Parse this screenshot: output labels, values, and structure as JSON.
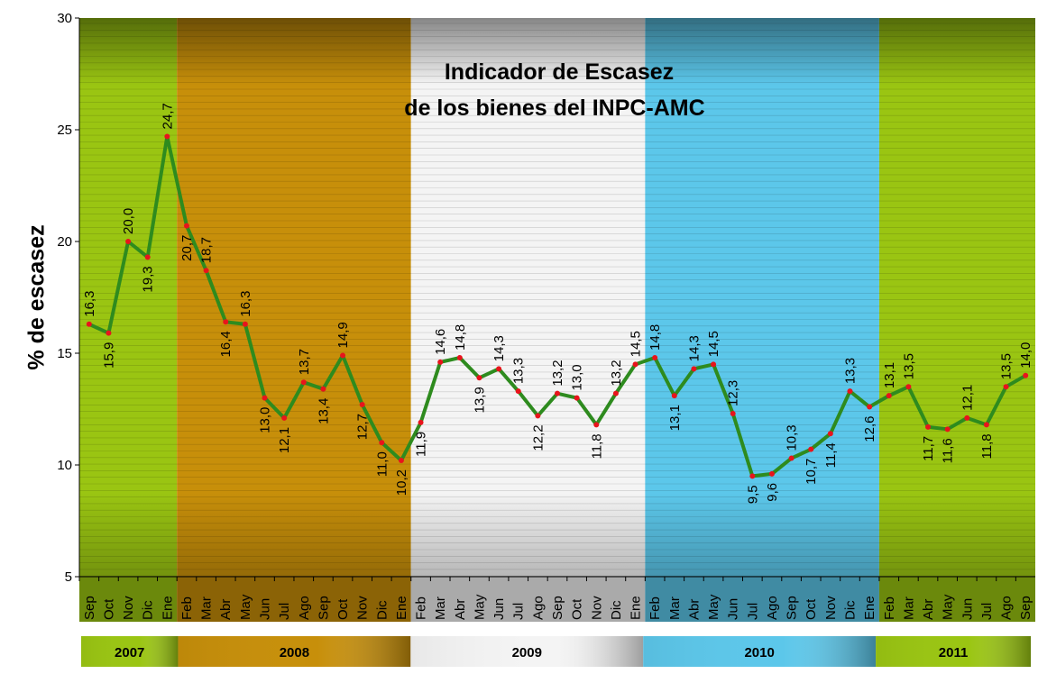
{
  "chart_data": {
    "type": "line",
    "title": "Indicador de Escasez",
    "subtitle": "de los bienes del INPC-AMC",
    "y_label": "% de escasez",
    "categories": [
      "Sep",
      "Oct",
      "Nov",
      "Dic",
      "Ene",
      "Feb",
      "Mar",
      "Abr",
      "May",
      "Jun",
      "Jul",
      "Ago",
      "Sep",
      "Oct",
      "Nov",
      "Dic",
      "Ene",
      "Feb",
      "Mar",
      "Abr",
      "May",
      "Jun",
      "Jul",
      "Ago",
      "Sep",
      "Oct",
      "Nov",
      "Dic",
      "Ene",
      "Feb",
      "Mar",
      "Abr",
      "May",
      "Jun",
      "Jul",
      "Ago",
      "Sep",
      "Oct",
      "Nov",
      "Dic",
      "Ene",
      "Feb",
      "Mar",
      "Abr",
      "May",
      "Jun",
      "Jul",
      "Ago",
      "Sep"
    ],
    "series": [
      {
        "name": "Indicador de Escasez",
        "color": "#2e8b1e",
        "marker_color": "#e8141c",
        "values": [
          16.3,
          15.9,
          20.0,
          19.3,
          24.7,
          20.7,
          18.7,
          16.4,
          16.3,
          13.0,
          12.1,
          13.7,
          13.4,
          14.9,
          12.7,
          11.0,
          10.2,
          11.9,
          14.6,
          14.8,
          13.9,
          14.3,
          13.3,
          12.2,
          13.2,
          13.0,
          11.8,
          13.2,
          14.5,
          14.8,
          13.1,
          14.3,
          14.5,
          12.3,
          9.5,
          9.6,
          10.3,
          10.7,
          11.4,
          13.3,
          12.6,
          13.1,
          13.5,
          11.7,
          11.6,
          12.1,
          11.8,
          13.5,
          14.0
        ],
        "value_labels": [
          "16,3",
          "15,9",
          "20,0",
          "19,3",
          "24,7",
          "20,7",
          "18,7",
          "16,4",
          "16,3",
          "13,0",
          "12,1",
          "13,7",
          "13,4",
          "14,9",
          "12,7",
          "11,0",
          "10,2",
          "11,9",
          "14,6",
          "14,8",
          "13,9",
          "14,3",
          "13,3",
          "12,2",
          "13,2",
          "13,0",
          "11,8",
          "13,2",
          "14,5",
          "14,8",
          "13,1",
          "14,3",
          "14,5",
          "12,3",
          "9,5",
          "9,6",
          "10,3",
          "10,7",
          "11,4",
          "13,3",
          "12,6",
          "13,1",
          "13,5",
          "11,7",
          "11,6",
          "12,1",
          "11,8",
          "13,5",
          "14,0"
        ]
      }
    ],
    "ylim": [
      5,
      30
    ],
    "yticks": [
      5,
      10,
      15,
      20,
      25,
      30
    ],
    "periods": [
      "2007",
      "2008",
      "2009",
      "2010",
      "2011"
    ],
    "period_colors": [
      "#9ac512",
      "#c78f0a",
      "#f4f4f4",
      "#5cc7ea",
      "#9ac512"
    ]
  }
}
